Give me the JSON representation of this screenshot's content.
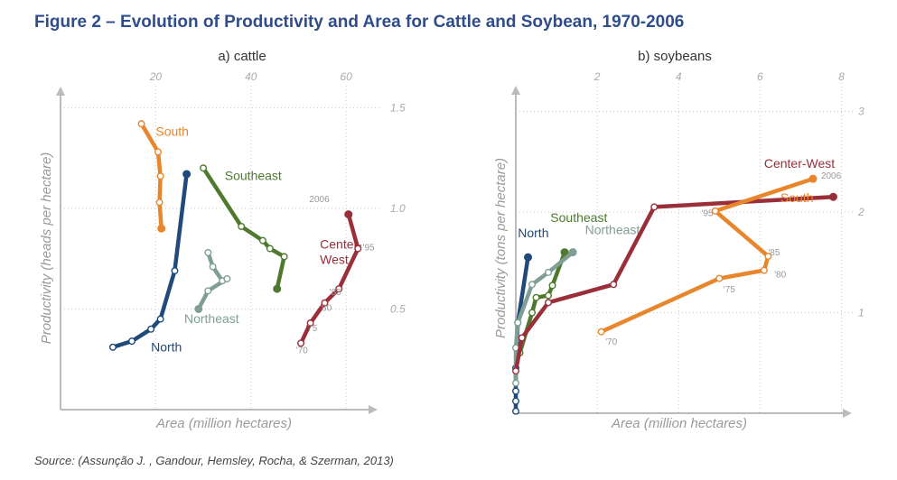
{
  "figure": {
    "title": "Figure 2 – Evolution of Productivity and Area for Cattle and Soybean, 1970-2006",
    "source": "Source: (Assunção J. , Gandour, Hemsley, Rocha, & Szerman, 2013)"
  },
  "colors": {
    "North": "#1f4a7a",
    "South": "#e8862c",
    "Southeast": "#4f7a2e",
    "Northeast": "#7f9f95",
    "Center-West": "#9a2f3a",
    "axis": "#bbbbbb",
    "grid": "#cccccc"
  },
  "chart_data": [
    {
      "type": "line",
      "title": "a) cattle",
      "xlabel": "Area (million hectares)",
      "ylabel": "Productivity (heads per hectare)",
      "xlim": [
        0,
        67
      ],
      "ylim": [
        0,
        1.6
      ],
      "xticks": [
        20,
        40,
        60
      ],
      "yticks": [
        0.5,
        1.0,
        1.5
      ],
      "tick_labels_x": [
        "20",
        "40",
        "60"
      ],
      "tick_labels_y": [
        "0.5",
        "1.0",
        "1.5"
      ],
      "grid": "dotted",
      "series": [
        {
          "name": "South",
          "x": [
            17,
            20.5,
            21,
            20.8,
            21.2
          ],
          "y": [
            1.42,
            1.28,
            1.16,
            1.03,
            0.9
          ],
          "label_xy": [
            20,
            1.36
          ],
          "label_anchor": "start"
        },
        {
          "name": "North",
          "x": [
            11,
            15,
            19,
            21,
            24,
            26.5
          ],
          "y": [
            0.31,
            0.34,
            0.4,
            0.45,
            0.69,
            1.17
          ],
          "label_xy": [
            19,
            0.29
          ],
          "label_anchor": "start"
        },
        {
          "name": "Southeast",
          "x": [
            30,
            38,
            42.5,
            44,
            47,
            45.5
          ],
          "y": [
            1.2,
            0.91,
            0.84,
            0.8,
            0.76,
            0.6
          ],
          "label_xy": [
            34.5,
            1.14
          ],
          "label_anchor": "start"
        },
        {
          "name": "Northeast",
          "x": [
            31,
            32,
            34,
            35,
            31,
            29
          ],
          "y": [
            0.78,
            0.71,
            0.64,
            0.65,
            0.59,
            0.5
          ],
          "label_xy": [
            26,
            0.43
          ],
          "label_anchor": "start"
        },
        {
          "name": "Center-West",
          "x": [
            50.5,
            52.5,
            55.5,
            58.5,
            62.5,
            60.5
          ],
          "y": [
            0.33,
            0.43,
            0.53,
            0.6,
            0.8,
            0.97
          ],
          "label_xy": [
            54.5,
            0.8
          ],
          "label_anchor": "start",
          "label_lines": [
            "Center-",
            "West"
          ]
        }
      ],
      "annotations": [
        {
          "text": "2006",
          "x": 56.5,
          "y": 1.03,
          "anchor": "end"
        },
        {
          "text": "'95",
          "x": 63.5,
          "y": 0.79,
          "anchor": "start"
        },
        {
          "text": "'85",
          "x": 56.5,
          "y": 0.57,
          "anchor": "start"
        },
        {
          "text": "'80",
          "x": 54.5,
          "y": 0.49,
          "anchor": "start"
        },
        {
          "text": "'75",
          "x": 51.5,
          "y": 0.39,
          "anchor": "start"
        },
        {
          "text": "'70",
          "x": 49.5,
          "y": 0.28,
          "anchor": "start"
        }
      ]
    },
    {
      "type": "line",
      "title": "b) soybeans",
      "xlabel": "Area (million hectares)",
      "ylabel": "Productivity (tons per hectare)",
      "xlim": [
        0,
        8.3
      ],
      "ylim": [
        0,
        3.3
      ],
      "xticks": [
        2,
        4,
        6,
        8
      ],
      "yticks": [
        1,
        2,
        3
      ],
      "tick_labels_x": [
        "2",
        "4",
        "6",
        "8"
      ],
      "tick_labels_y": [
        "1",
        "2",
        "3"
      ],
      "grid": "dotted",
      "series": [
        {
          "name": "North",
          "x": [
            0,
            0,
            0,
            0,
            0.05,
            0.3
          ],
          "y": [
            0.02,
            0.12,
            0.22,
            0.45,
            0.9,
            1.55
          ],
          "label_xy": [
            0.05,
            1.75
          ],
          "label_anchor": "start"
        },
        {
          "name": "Southeast",
          "x": [
            0.1,
            0.4,
            0.5,
            0.8,
            0.9,
            1.2
          ],
          "y": [
            0.6,
            1.0,
            1.15,
            1.17,
            1.27,
            1.6
          ],
          "label_xy": [
            0.85,
            1.9
          ],
          "label_anchor": "start"
        },
        {
          "name": "Northeast",
          "x": [
            0,
            0,
            0.05,
            0.4,
            0.8,
            1.4
          ],
          "y": [
            0.3,
            0.65,
            0.9,
            1.28,
            1.4,
            1.6
          ],
          "label_xy": [
            1.7,
            1.78
          ],
          "label_anchor": "start"
        },
        {
          "name": "Center-West",
          "x": [
            0,
            0.15,
            0.8,
            2.4,
            3.4,
            7.8
          ],
          "y": [
            0.42,
            0.75,
            1.1,
            1.28,
            2.05,
            2.15
          ],
          "label_xy": [
            6.1,
            2.44
          ],
          "label_anchor": "start"
        },
        {
          "name": "South",
          "x": [
            2.1,
            5.0,
            6.1,
            6.2,
            4.9,
            7.3
          ],
          "y": [
            0.81,
            1.34,
            1.42,
            1.56,
            2.01,
            2.33
          ],
          "label_xy": [
            6.5,
            2.1
          ],
          "label_anchor": "start"
        }
      ],
      "annotations": [
        {
          "text": "2006",
          "x": 7.5,
          "y": 2.33,
          "anchor": "start"
        },
        {
          "text": "'95",
          "x": 4.85,
          "y": 1.96,
          "anchor": "end"
        },
        {
          "text": "'85",
          "x": 6.2,
          "y": 1.57,
          "anchor": "start"
        },
        {
          "text": "'80",
          "x": 6.35,
          "y": 1.35,
          "anchor": "start"
        },
        {
          "text": "'75",
          "x": 5.1,
          "y": 1.2,
          "anchor": "start"
        },
        {
          "text": "'70",
          "x": 2.2,
          "y": 0.68,
          "anchor": "start"
        }
      ]
    }
  ]
}
